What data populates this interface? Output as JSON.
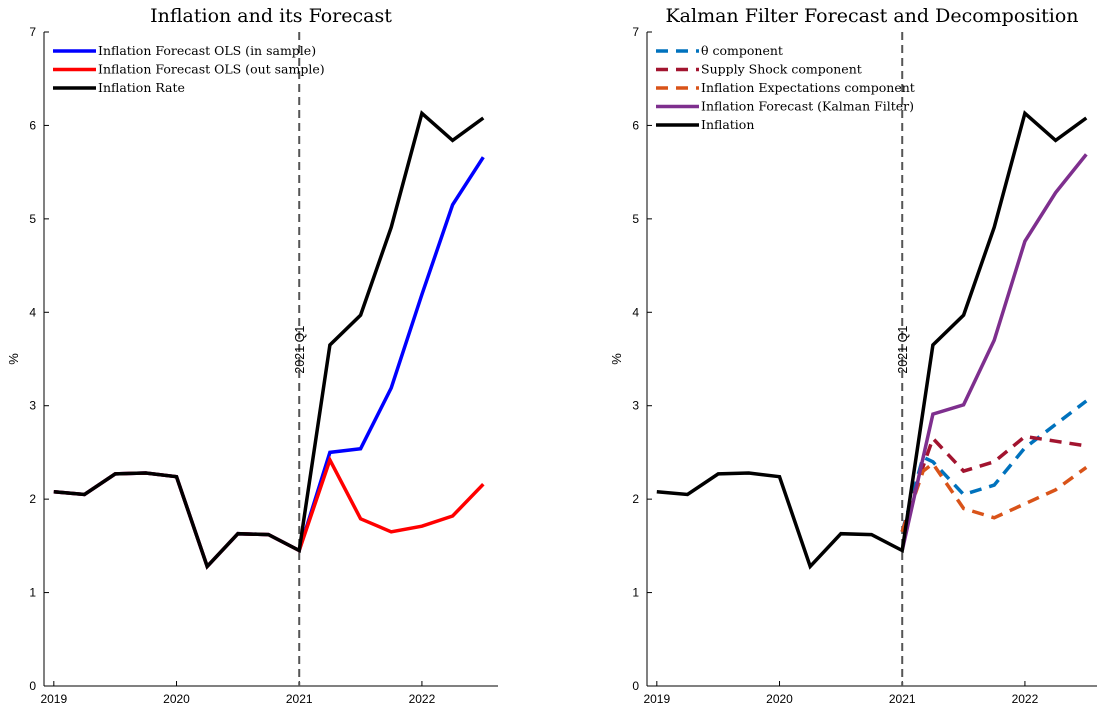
{
  "chart_data": [
    {
      "type": "line",
      "title": "Inflation and its Forecast",
      "xlabel": "",
      "ylabel": "%",
      "xlim": [
        2018.92,
        2022.62
      ],
      "ylim": [
        0,
        7
      ],
      "xticks": [
        2019,
        2020,
        2021,
        2022
      ],
      "xtick_labels": [
        "2019",
        "2020",
        "2021",
        "2022"
      ],
      "yticks": [
        0,
        1,
        2,
        3,
        4,
        5,
        6,
        7
      ],
      "grid": false,
      "legend_position": "top-left",
      "vline": {
        "x": 2021.0,
        "label": "2021 Q1",
        "color": "#555555"
      },
      "series": [
        {
          "name": "Inflation Forecast OLS (in sample)",
          "color": "#0000ff",
          "style": "solid",
          "x": [
            2019.0,
            2019.25,
            2019.5,
            2019.75,
            2020.0,
            2020.25,
            2020.5,
            2020.75,
            2021.0,
            2021.25,
            2021.5,
            2021.75,
            2022.0,
            2022.25,
            2022.5
          ],
          "y": [
            2.08,
            2.05,
            2.27,
            2.28,
            2.24,
            1.28,
            1.63,
            1.62,
            1.45,
            2.5,
            2.54,
            3.19,
            4.19,
            5.15,
            5.66
          ]
        },
        {
          "name": "Inflation Forecast OLS (out sample)",
          "color": "#ff0000",
          "style": "solid",
          "x": [
            2019.0,
            2019.25,
            2019.5,
            2019.75,
            2020.0,
            2020.25,
            2020.5,
            2020.75,
            2021.0,
            2021.25,
            2021.5,
            2021.75,
            2022.0,
            2022.25,
            2022.5
          ],
          "y": [
            2.08,
            2.05,
            2.27,
            2.28,
            2.24,
            1.28,
            1.63,
            1.62,
            1.45,
            2.42,
            1.79,
            1.65,
            1.71,
            1.82,
            2.16
          ]
        },
        {
          "name": "Inflation Rate",
          "color": "#000000",
          "style": "solid",
          "x": [
            2019.0,
            2019.25,
            2019.5,
            2019.75,
            2020.0,
            2020.25,
            2020.5,
            2020.75,
            2021.0,
            2021.25,
            2021.5,
            2021.75,
            2022.0,
            2022.25,
            2022.5
          ],
          "y": [
            2.08,
            2.05,
            2.27,
            2.28,
            2.24,
            1.28,
            1.63,
            1.62,
            1.45,
            3.65,
            3.97,
            4.91,
            6.13,
            5.84,
            6.08
          ]
        }
      ]
    },
    {
      "type": "line",
      "title": "Kalman Filter Forecast and Decomposition",
      "xlabel": "",
      "ylabel": "%",
      "xlim": [
        2018.92,
        2022.62
      ],
      "ylim": [
        0,
        7
      ],
      "xticks": [
        2019,
        2020,
        2021,
        2022
      ],
      "xtick_labels": [
        "2019",
        "2020",
        "2021",
        "2022"
      ],
      "yticks": [
        0,
        1,
        2,
        3,
        4,
        5,
        6,
        7
      ],
      "grid": false,
      "legend_position": "top-left",
      "vline": {
        "x": 2021.0,
        "label": "2021 Q1",
        "color": "#555555"
      },
      "series": [
        {
          "name": "θ component",
          "color": "#0072bd",
          "style": "dashed",
          "x": [
            2021.0,
            2021.17,
            2021.25,
            2021.5,
            2021.75,
            2022.0,
            2022.25,
            2022.5
          ],
          "y": [
            1.65,
            2.45,
            2.4,
            2.05,
            2.15,
            2.55,
            2.8,
            3.05
          ]
        },
        {
          "name": "Supply Shock component",
          "color": "#a2142f",
          "style": "dashed",
          "x": [
            2021.0,
            2021.17,
            2021.25,
            2021.5,
            2021.75,
            2022.0,
            2022.25,
            2022.5
          ],
          "y": [
            1.65,
            2.35,
            2.65,
            2.3,
            2.4,
            2.67,
            2.62,
            2.57
          ]
        },
        {
          "name": "Inflation Expectations component",
          "color": "#d95319",
          "style": "dashed",
          "x": [
            2021.0,
            2021.17,
            2021.25,
            2021.5,
            2021.75,
            2022.0,
            2022.25,
            2022.5
          ],
          "y": [
            1.65,
            2.3,
            2.38,
            1.9,
            1.8,
            1.95,
            2.1,
            2.34
          ]
        },
        {
          "name": "Inflation Forecast (Kalman Filter)",
          "color": "#7e2f8e",
          "style": "solid",
          "x": [
            2021.0,
            2021.25,
            2021.5,
            2021.75,
            2022.0,
            2022.25,
            2022.5
          ],
          "y": [
            1.45,
            2.91,
            3.01,
            3.7,
            4.76,
            5.28,
            5.69
          ]
        },
        {
          "name": "Inflation",
          "color": "#000000",
          "style": "solid",
          "x": [
            2019.0,
            2019.25,
            2019.5,
            2019.75,
            2020.0,
            2020.25,
            2020.5,
            2020.75,
            2021.0,
            2021.25,
            2021.5,
            2021.75,
            2022.0,
            2022.25,
            2022.5
          ],
          "y": [
            2.08,
            2.05,
            2.27,
            2.28,
            2.24,
            1.28,
            1.63,
            1.62,
            1.45,
            3.65,
            3.97,
            4.91,
            6.13,
            5.84,
            6.08
          ]
        }
      ]
    }
  ]
}
